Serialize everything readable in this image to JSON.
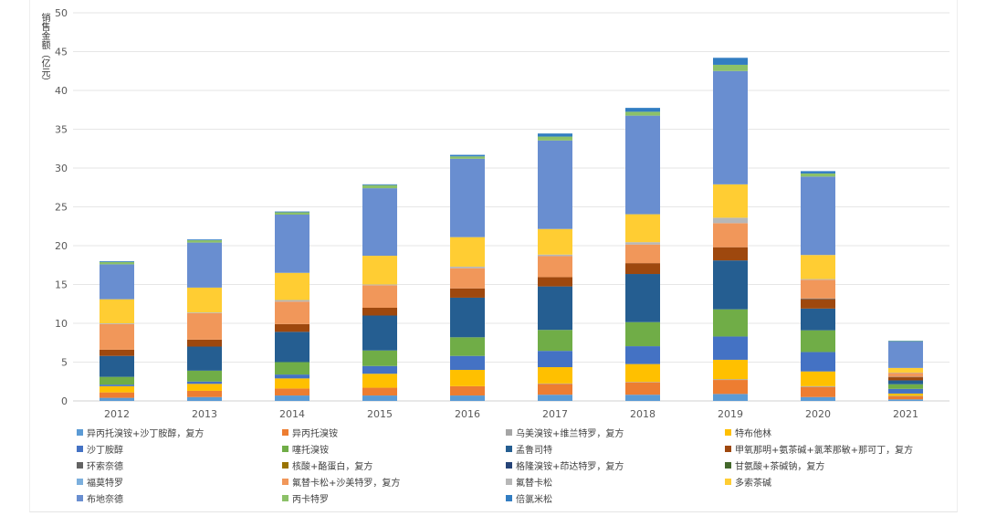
{
  "chart_data": {
    "type": "bar",
    "stacked": true,
    "title": "",
    "xlabel": "",
    "ylabel": "销售金额（亿元）",
    "ylim": [
      0,
      50
    ],
    "yticks": [
      0,
      5,
      10,
      15,
      20,
      25,
      30,
      35,
      40,
      45,
      50
    ],
    "grid": true,
    "legend_position": "bottom",
    "categories": [
      "2012",
      "2013",
      "2014",
      "2015",
      "2016",
      "2017",
      "2018",
      "2019",
      "2020",
      "2021"
    ],
    "series": [
      {
        "name": "异丙托溴铵+沙丁胺醇，复方",
        "color": "#5b9bd5",
        "values": [
          0.4,
          0.5,
          0.7,
          0.7,
          0.7,
          0.8,
          0.8,
          0.9,
          0.5,
          0.2
        ]
      },
      {
        "name": "异丙托溴铵",
        "color": "#ed7d31",
        "values": [
          0.7,
          0.8,
          0.9,
          1.0,
          1.2,
          1.4,
          1.6,
          1.8,
          1.3,
          0.4
        ]
      },
      {
        "name": "乌美溴铵+维兰特罗，复方",
        "color": "#a5a5a5",
        "values": [
          0,
          0,
          0,
          0,
          0,
          0.05,
          0.05,
          0.1,
          0.1,
          0.05
        ]
      },
      {
        "name": "特布他林",
        "color": "#ffc000",
        "values": [
          0.8,
          0.9,
          1.3,
          1.8,
          2.1,
          2.1,
          2.3,
          2.5,
          1.9,
          0.3
        ]
      },
      {
        "name": "沙丁胺醇",
        "color": "#4472c4",
        "values": [
          0.2,
          0.3,
          0.5,
          1.0,
          1.8,
          2.1,
          2.3,
          3.0,
          2.5,
          0.6
        ]
      },
      {
        "name": "噻托溴铵",
        "color": "#70ad47",
        "values": [
          1.0,
          1.4,
          1.6,
          2.0,
          2.4,
          2.7,
          3.1,
          3.5,
          2.8,
          0.6
        ]
      },
      {
        "name": "孟鲁司特",
        "color": "#255e91",
        "values": [
          2.7,
          3.1,
          3.9,
          4.5,
          5.1,
          5.6,
          6.2,
          6.3,
          2.8,
          0.5
        ]
      },
      {
        "name": "甲氧那明+氨茶碱+氯苯那敏+那可丁，复方",
        "color": "#9e480e",
        "values": [
          0.8,
          0.9,
          1.0,
          1.0,
          1.2,
          1.2,
          1.4,
          1.7,
          1.2,
          0.4
        ]
      },
      {
        "name": "环索奈德",
        "color": "#636363",
        "values": [
          0,
          0,
          0,
          0,
          0,
          0,
          0,
          0,
          0.1,
          0.05
        ]
      },
      {
        "name": "核酸+酪蛋白，复方",
        "color": "#997300",
        "values": [
          0,
          0,
          0,
          0,
          0,
          0,
          0,
          0,
          0,
          0
        ]
      },
      {
        "name": "格隆溴铵+茚达特罗，复方",
        "color": "#264478",
        "values": [
          0,
          0,
          0,
          0,
          0,
          0,
          0,
          0,
          0,
          0
        ]
      },
      {
        "name": "甘氨酸+茶碱钠，复方",
        "color": "#43682b",
        "values": [
          0,
          0,
          0,
          0,
          0,
          0,
          0,
          0,
          0,
          0
        ]
      },
      {
        "name": "福莫特罗",
        "color": "#7cafdd",
        "values": [
          0,
          0,
          0,
          0,
          0,
          0,
          0,
          0,
          0,
          0
        ]
      },
      {
        "name": "氟替卡松+沙美特罗，复方",
        "color": "#f1975a",
        "values": [
          3.3,
          3.4,
          2.9,
          2.9,
          2.6,
          2.7,
          2.4,
          3.1,
          2.4,
          0.5
        ]
      },
      {
        "name": "氟替卡松",
        "color": "#b7b7b7",
        "values": [
          0.1,
          0.1,
          0.2,
          0.1,
          0.2,
          0.2,
          0.3,
          0.7,
          0.1,
          0.05
        ]
      },
      {
        "name": "多索茶碱",
        "color": "#ffcd33",
        "values": [
          3.1,
          3.2,
          3.5,
          3.7,
          3.8,
          3.3,
          3.6,
          4.3,
          3.1,
          0.6
        ]
      },
      {
        "name": "布地奈德",
        "color": "#698ed0",
        "values": [
          4.5,
          5.8,
          7.5,
          8.7,
          10.1,
          11.4,
          12.7,
          14.6,
          10.1,
          3.4
        ]
      },
      {
        "name": "丙卡特罗",
        "color": "#8cc168",
        "values": [
          0.3,
          0.3,
          0.3,
          0.4,
          0.3,
          0.5,
          0.5,
          0.8,
          0.4,
          0.05
        ]
      },
      {
        "name": "倍氯米松",
        "color": "#327dc2",
        "values": [
          0.1,
          0.1,
          0.1,
          0.1,
          0.2,
          0.4,
          0.5,
          0.9,
          0.3,
          0.05
        ]
      }
    ]
  }
}
